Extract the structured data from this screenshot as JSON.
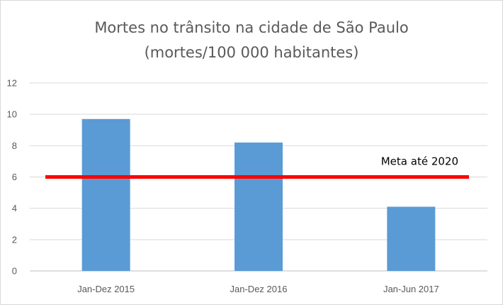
{
  "chart_data": {
    "type": "bar",
    "title": "Mortes no trânsito na cidade de São Paulo",
    "subtitle": "(mortes/100 000 habitantes)",
    "xlabel": "",
    "ylabel": "",
    "categories": [
      "Jan-Dez 2015",
      "Jan-Dez 2016",
      "Jan-Jun 2017"
    ],
    "values": [
      9.7,
      8.2,
      4.1
    ],
    "ylim": [
      0,
      12
    ],
    "yticks": [
      "0",
      "2",
      "4",
      "6",
      "8",
      "10",
      "12"
    ],
    "grid": true,
    "bar_color": "#5b9bd5",
    "reference_line": {
      "value": 6,
      "label": "Meta até 2020",
      "color": "#ff0000"
    }
  }
}
